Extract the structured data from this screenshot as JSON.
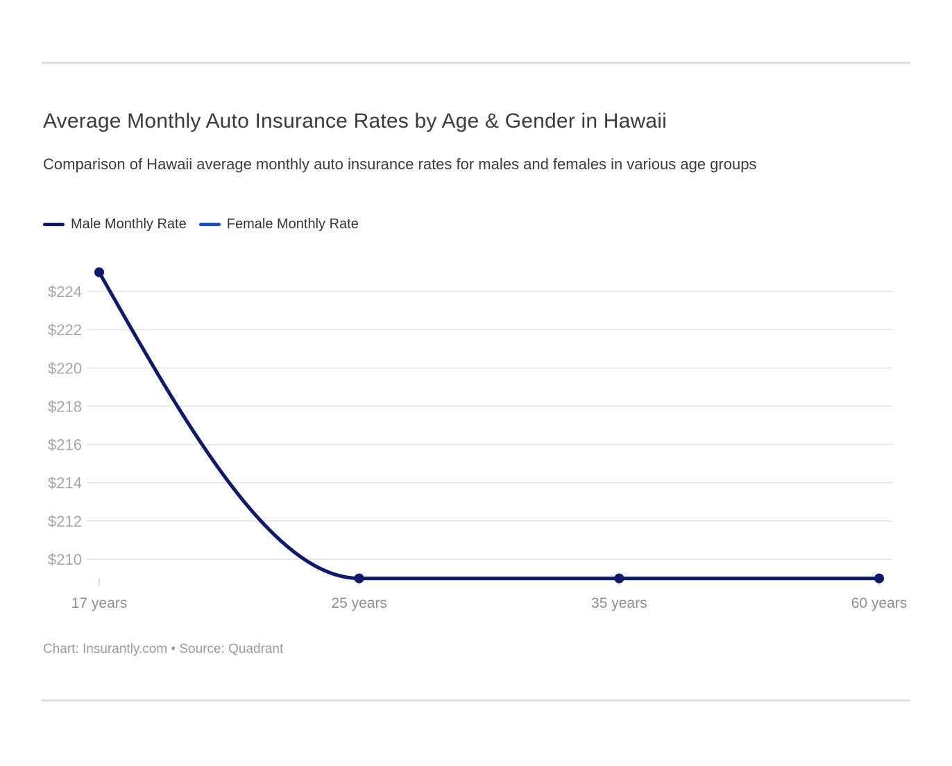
{
  "footer": {
    "credit": "Chart: Insurantly.com • Source: Quadrant"
  },
  "chart_data": {
    "type": "line",
    "title": "Average Monthly Auto Insurance Rates by Age & Gender in Hawaii",
    "subtitle": "Comparison of Hawaii average monthly auto insurance rates for males and females in various age groups",
    "categories": [
      "17 years",
      "25 years",
      "35 years",
      "60 years"
    ],
    "series": [
      {
        "name": "Male Monthly Rate",
        "color": "#0f1a68",
        "values": [
          225,
          209,
          209,
          209
        ]
      },
      {
        "name": "Female Monthly Rate",
        "color": "#1e50bb",
        "values": [
          225,
          209,
          209,
          209
        ]
      }
    ],
    "xlabel": "",
    "ylabel": "",
    "y_ticks": [
      224,
      222,
      220,
      218,
      216,
      214,
      212,
      210
    ],
    "y_tick_labels": [
      "$224",
      "$222",
      "$220",
      "$218",
      "$216",
      "$214",
      "$212",
      "$210"
    ],
    "ylim": [
      208.5,
      225.8
    ],
    "grid": "horizontal",
    "legend_position": "top-left",
    "curve": "monotone",
    "markers": "circle",
    "colors": {
      "grid": "#e4e4e4",
      "tick": "#d9d9d9",
      "y_label": "#a7a7a7",
      "x_label": "#8e8e8e"
    }
  }
}
